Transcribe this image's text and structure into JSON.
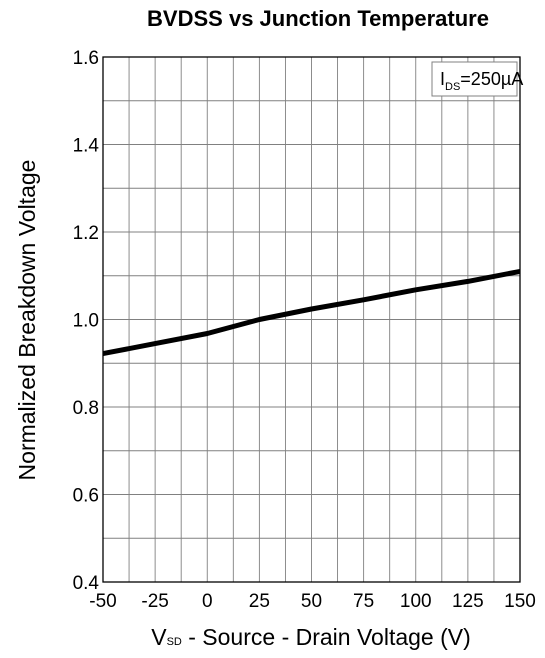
{
  "chart_data": {
    "type": "line",
    "title": "BVDSS vs Junction Temperature",
    "xlabel": {
      "prefix": "V",
      "subscript": "SD",
      "text": " - Source - Drain Voltage (V)"
    },
    "ylabel": "Normalized Breakdown Voltage",
    "xlim": [
      -50,
      150
    ],
    "ylim": [
      0.4,
      1.6
    ],
    "x_ticks": [
      "-50",
      "-25",
      "0",
      "25",
      "50",
      "75",
      "100",
      "125",
      "150"
    ],
    "y_ticks": [
      "0.4",
      "0.6",
      "0.8",
      "1.0",
      "1.2",
      "1.4",
      "1.6"
    ],
    "annotation": {
      "prefix": "I",
      "subscript": "DS",
      "text": "=250µA"
    },
    "grid": true,
    "series": [
      {
        "x": [
          -50,
          -25,
          0,
          25,
          50,
          75,
          100,
          125,
          150
        ],
        "y": [
          0.922,
          0.945,
          0.968,
          1.0,
          1.024,
          1.045,
          1.068,
          1.087,
          1.11
        ]
      }
    ],
    "colors": {
      "line": "#000000",
      "grid": "#808080",
      "frame": "#000000"
    }
  }
}
